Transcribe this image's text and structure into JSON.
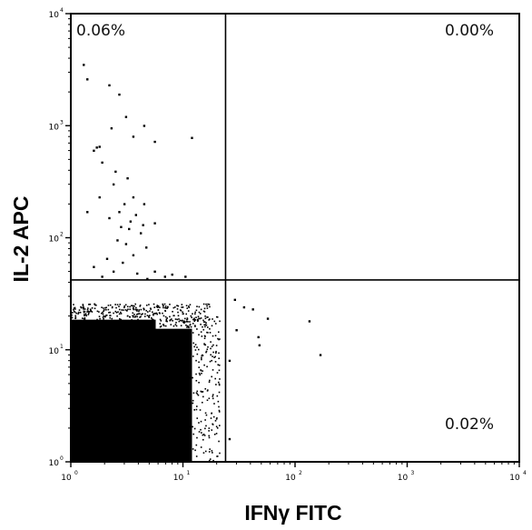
{
  "chart_data": {
    "type": "scatter",
    "xlabel": "IFNγ FITC",
    "ylabel": "IL-2 APC",
    "xscale": "log",
    "yscale": "log",
    "xlim": [
      1,
      10000
    ],
    "ylim": [
      1,
      10000
    ],
    "x_tick_labels": [
      "10",
      "10",
      "10",
      "10",
      "10"
    ],
    "x_tick_exponents": [
      "0",
      "1",
      "2",
      "3",
      "4"
    ],
    "y_tick_labels": [
      "10",
      "10",
      "10",
      "10",
      "10"
    ],
    "y_tick_exponents": [
      "0",
      "1",
      "2",
      "3",
      "4"
    ],
    "quadrant_gates": {
      "x": 24,
      "y": 42
    },
    "quadrants": {
      "upper_left": "0.06%",
      "upper_right": "0.00%",
      "lower_right": "0.02%",
      "lower_left": ""
    },
    "grid": false,
    "legend": "none",
    "dense_population": {
      "x_range": [
        1,
        10
      ],
      "y_range": [
        1,
        20
      ],
      "color": "#000000"
    },
    "sparse_points": [
      [
        1.3,
        3500
      ],
      [
        1.4,
        2600
      ],
      [
        2.2,
        2300
      ],
      [
        2.7,
        1900
      ],
      [
        3.1,
        1200
      ],
      [
        1.8,
        650
      ],
      [
        2.3,
        950
      ],
      [
        3.6,
        800
      ],
      [
        4.5,
        1000
      ],
      [
        5.6,
        720
      ],
      [
        12,
        780
      ],
      [
        1.6,
        600
      ],
      [
        1.7,
        640
      ],
      [
        1.9,
        470
      ],
      [
        2.5,
        390
      ],
      [
        3.2,
        340
      ],
      [
        2.4,
        300
      ],
      [
        3.6,
        230
      ],
      [
        1.8,
        230
      ],
      [
        4.5,
        200
      ],
      [
        3.0,
        200
      ],
      [
        2.7,
        170
      ],
      [
        1.4,
        170
      ],
      [
        3.8,
        160
      ],
      [
        2.2,
        150
      ],
      [
        4.4,
        130
      ],
      [
        5.6,
        135
      ],
      [
        3.3,
        120
      ],
      [
        2.8,
        125
      ],
      [
        4.2,
        110
      ],
      [
        3.4,
        140
      ],
      [
        2.6,
        95
      ],
      [
        3.1,
        88
      ],
      [
        4.7,
        82
      ],
      [
        3.6,
        70
      ],
      [
        2.1,
        65
      ],
      [
        2.9,
        60
      ],
      [
        1.6,
        55
      ],
      [
        2.4,
        50
      ],
      [
        3.9,
        48
      ],
      [
        5.6,
        50
      ],
      [
        1.9,
        45
      ],
      [
        8.0,
        47
      ],
      [
        6.9,
        45
      ],
      [
        10.5,
        45
      ],
      [
        4.8,
        43
      ],
      [
        29,
        28
      ],
      [
        35,
        24
      ],
      [
        42,
        23
      ],
      [
        57,
        19
      ],
      [
        134,
        18
      ],
      [
        30,
        15
      ],
      [
        47,
        13
      ],
      [
        48,
        11
      ],
      [
        168,
        9
      ],
      [
        26,
        8
      ],
      [
        26,
        1.6
      ]
    ],
    "colors": {
      "points": "#000000",
      "frame": "#000000",
      "background": "#ffffff"
    }
  }
}
